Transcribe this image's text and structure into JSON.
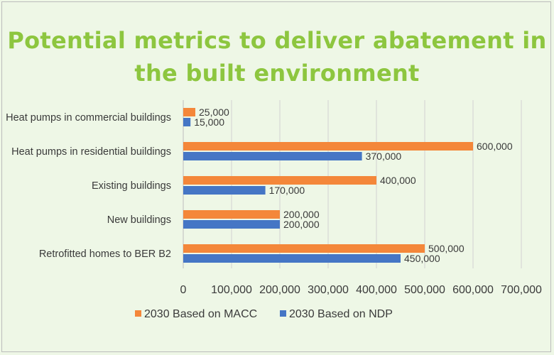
{
  "title_lines": [
    "Potential metrics to deliver abatement in",
    "the built environment"
  ],
  "colors": {
    "title": "#8dc63f",
    "macc": "#f4873a",
    "ndp": "#4576c5",
    "grid": "#d2d2d2",
    "text": "#3a3a3a"
  },
  "chart_data": {
    "type": "bar",
    "orientation": "horizontal",
    "title": "Potential metrics to deliver abatement in the built environment",
    "categories": [
      "Heat pumps in commercial buildings",
      "Heat pumps in residential buildings",
      "Existing buildings",
      "New buildings",
      "Retrofitted homes to BER B2"
    ],
    "series": [
      {
        "name": "2030 Based on MACC",
        "color": "#f4873a",
        "values": [
          25000,
          600000,
          400000,
          200000,
          500000
        ]
      },
      {
        "name": "2030 Based on NDP",
        "color": "#4576c5",
        "values": [
          15000,
          370000,
          170000,
          200000,
          450000
        ]
      }
    ],
    "value_labels": [
      [
        "25,000",
        "600,000",
        "400,000",
        "200,000",
        "500,000"
      ],
      [
        "15,000",
        "370,000",
        "170,000",
        "200,000",
        "450,000"
      ]
    ],
    "xlim": [
      0,
      700000
    ],
    "xticks": [
      0,
      100000,
      200000,
      300000,
      400000,
      500000,
      600000,
      700000
    ],
    "xtick_labels": [
      "0",
      "100,000",
      "200,000",
      "300,000",
      "400,000",
      "500,000",
      "600,000",
      "700,000"
    ],
    "grid": true,
    "legend_position": "bottom"
  }
}
